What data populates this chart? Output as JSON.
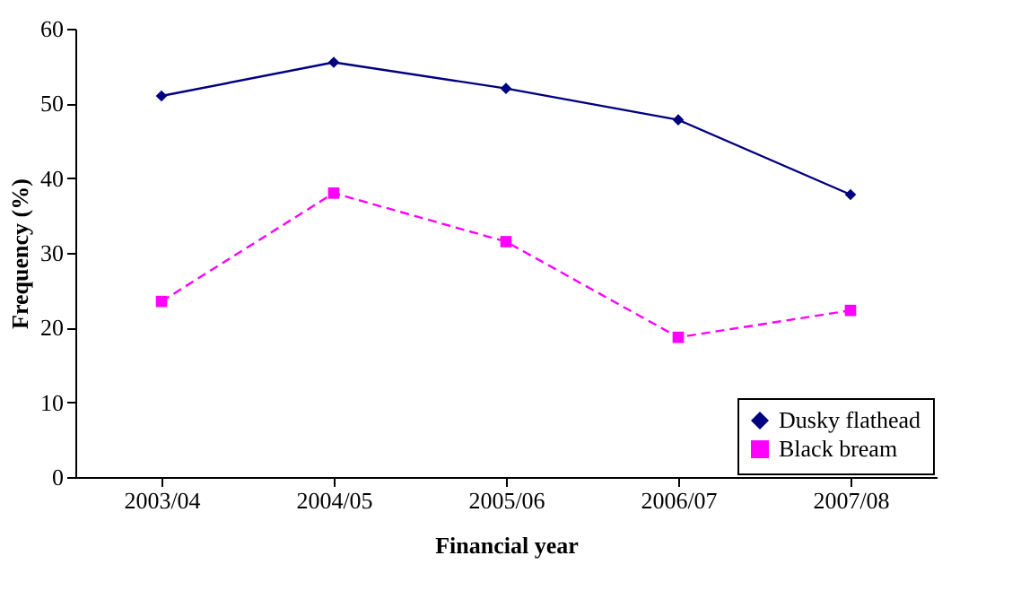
{
  "chart_data": {
    "type": "line",
    "xlabel": "Financial year",
    "ylabel": "Frequency (%)",
    "categories": [
      "2003/04",
      "2004/05",
      "2005/06",
      "2006/07",
      "2007/08"
    ],
    "series": [
      {
        "name": "Dusky flathead",
        "color": "#000080",
        "values": [
          51,
          55.5,
          52,
          47.8,
          37.8
        ],
        "marker": "diamond",
        "line_style": "solid"
      },
      {
        "name": "Black bream",
        "color": "#ff00ff",
        "values": [
          23.5,
          38,
          31.5,
          18.7,
          22.3
        ],
        "marker": "square",
        "line_style": "dashed"
      }
    ],
    "ylim": [
      0,
      60
    ],
    "yticks": [
      0,
      10,
      20,
      30,
      40,
      50,
      60
    ],
    "grid": false,
    "legend": "bottom right"
  }
}
